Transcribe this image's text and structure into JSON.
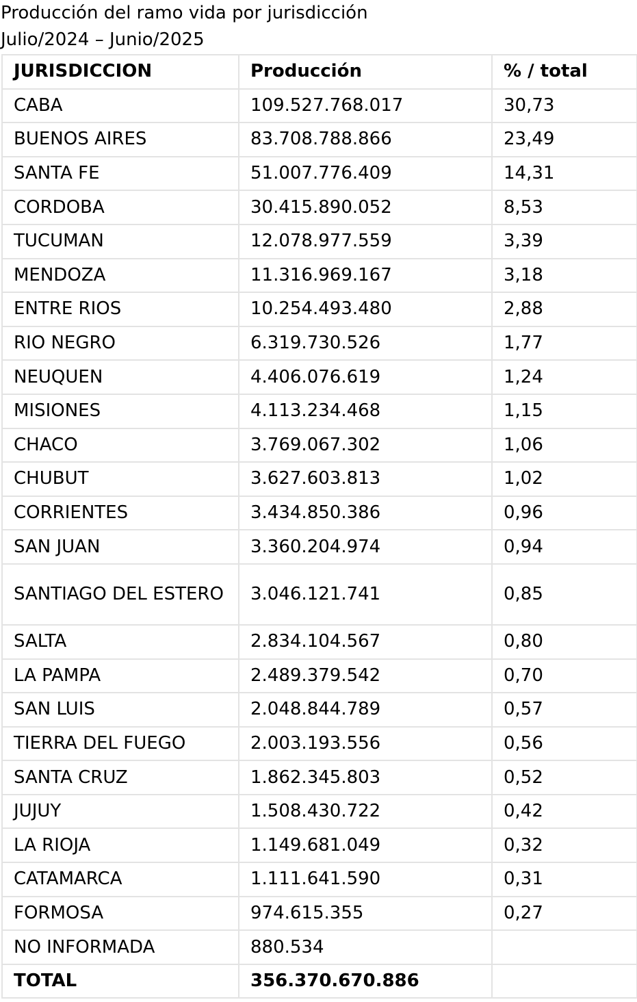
{
  "title": {
    "line1": "Producción del ramo vida por jurisdicción",
    "line2": "Julio/2024 – Junio/2025"
  },
  "table": {
    "headers": [
      "JURISDICCION",
      "Producción",
      "% / total"
    ],
    "rows": [
      {
        "jurisdiccion": "CABA",
        "produccion": "109.527.768.017",
        "porcentaje": "30,73"
      },
      {
        "jurisdiccion": "BUENOS AIRES",
        "produccion": "83.708.788.866",
        "porcentaje": "23,49"
      },
      {
        "jurisdiccion": "SANTA FE",
        "produccion": "51.007.776.409",
        "porcentaje": "14,31"
      },
      {
        "jurisdiccion": "CORDOBA",
        "produccion": "30.415.890.052",
        "porcentaje": "8,53"
      },
      {
        "jurisdiccion": "TUCUMAN",
        "produccion": "12.078.977.559",
        "porcentaje": "3,39"
      },
      {
        "jurisdiccion": "MENDOZA",
        "produccion": "11.316.969.167",
        "porcentaje": "3,18"
      },
      {
        "jurisdiccion": "ENTRE RIOS",
        "produccion": "10.254.493.480",
        "porcentaje": "2,88"
      },
      {
        "jurisdiccion": "RIO NEGRO",
        "produccion": "6.319.730.526",
        "porcentaje": "1,77"
      },
      {
        "jurisdiccion": "NEUQUEN",
        "produccion": "4.406.076.619",
        "porcentaje": "1,24"
      },
      {
        "jurisdiccion": "MISIONES",
        "produccion": "4.113.234.468",
        "porcentaje": "1,15"
      },
      {
        "jurisdiccion": "CHACO",
        "produccion": "3.769.067.302",
        "porcentaje": "1,06"
      },
      {
        "jurisdiccion": "CHUBUT",
        "produccion": "3.627.603.813",
        "porcentaje": "1,02"
      },
      {
        "jurisdiccion": "CORRIENTES",
        "produccion": "3.434.850.386",
        "porcentaje": "0,96"
      },
      {
        "jurisdiccion": "SAN JUAN",
        "produccion": "3.360.204.974",
        "porcentaje": "0,94"
      },
      {
        "jurisdiccion": "SANTIAGO DEL ESTERO",
        "produccion": "3.046.121.741",
        "porcentaje": "0,85"
      },
      {
        "jurisdiccion": "SALTA",
        "produccion": "2.834.104.567",
        "porcentaje": "0,80"
      },
      {
        "jurisdiccion": "LA PAMPA",
        "produccion": "2.489.379.542",
        "porcentaje": "0,70"
      },
      {
        "jurisdiccion": "SAN LUIS",
        "produccion": "2.048.844.789",
        "porcentaje": "0,57"
      },
      {
        "jurisdiccion": "TIERRA DEL FUEGO",
        "produccion": "2.003.193.556",
        "porcentaje": "0,56"
      },
      {
        "jurisdiccion": "SANTA CRUZ",
        "produccion": "1.862.345.803",
        "porcentaje": "0,52"
      },
      {
        "jurisdiccion": "JUJUY",
        "produccion": "1.508.430.722",
        "porcentaje": "0,42"
      },
      {
        "jurisdiccion": "LA RIOJA",
        "produccion": "1.149.681.049",
        "porcentaje": "0,32"
      },
      {
        "jurisdiccion": "CATAMARCA",
        "produccion": "1.111.641.590",
        "porcentaje": "0,31"
      },
      {
        "jurisdiccion": "FORMOSA",
        "produccion": "974.615.355",
        "porcentaje": "0,27"
      },
      {
        "jurisdiccion": "NO INFORMADA",
        "produccion": "880.534",
        "porcentaje": ""
      }
    ],
    "total": {
      "jurisdiccion": "TOTAL",
      "produccion": "356.370.670.886",
      "porcentaje": ""
    }
  },
  "colors": {
    "border": "#e3e3e3",
    "text": "#000000",
    "background": "#ffffff"
  }
}
